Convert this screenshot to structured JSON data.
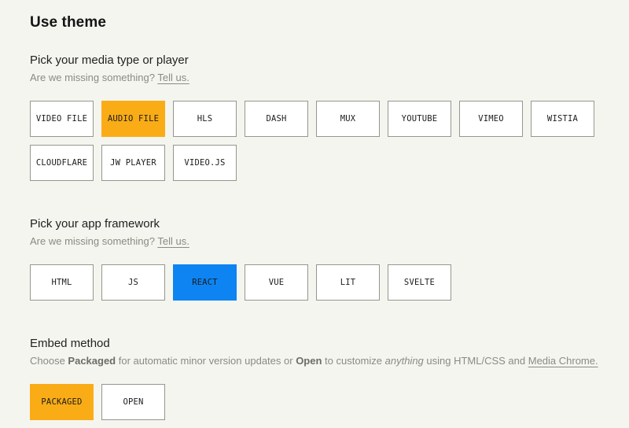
{
  "page": {
    "title": "Use theme",
    "background_color": "#f5f5f0"
  },
  "colors": {
    "selected_orange": "#faac16",
    "selected_blue": "#0d84f2",
    "button_border": "#96968e",
    "muted_text": "#8b8b84"
  },
  "sections": [
    {
      "id": "media-type",
      "heading": "Pick your media type or player",
      "subtext_parts": [
        {
          "text": "Are we missing something? ",
          "name": "missing-something-text"
        },
        {
          "text": "Tell us.",
          "link": true,
          "name": "tell-us-link"
        }
      ],
      "selected_color": "#faac16",
      "options": [
        {
          "label": "VIDEO FILE",
          "selected": false
        },
        {
          "label": "AUDIO FILE",
          "selected": true
        },
        {
          "label": "HLS",
          "selected": false
        },
        {
          "label": "DASH",
          "selected": false
        },
        {
          "label": "MUX",
          "selected": false
        },
        {
          "label": "YOUTUBE",
          "selected": false
        },
        {
          "label": "VIMEO",
          "selected": false
        },
        {
          "label": "WISTIA",
          "selected": false
        },
        {
          "label": "CLOUDFLARE",
          "selected": false
        },
        {
          "label": "JW PLAYER",
          "selected": false
        },
        {
          "label": "VIDEO.JS",
          "selected": false
        }
      ]
    },
    {
      "id": "framework",
      "heading": "Pick your app framework",
      "subtext_parts": [
        {
          "text": "Are we missing something? ",
          "name": "missing-something-text"
        },
        {
          "text": "Tell us.",
          "link": true,
          "name": "tell-us-link"
        }
      ],
      "selected_color": "#0d84f2",
      "options": [
        {
          "label": "HTML",
          "selected": false
        },
        {
          "label": "JS",
          "selected": false
        },
        {
          "label": "REACT",
          "selected": true
        },
        {
          "label": "VUE",
          "selected": false
        },
        {
          "label": "LIT",
          "selected": false
        },
        {
          "label": "SVELTE",
          "selected": false
        }
      ]
    },
    {
      "id": "embed-method",
      "heading": "Embed method",
      "subtext_parts": [
        {
          "text": "Choose ",
          "name": "embed-desc-text"
        },
        {
          "text": "Packaged",
          "bold": true,
          "name": "embed-desc-packaged"
        },
        {
          "text": " for automatic minor version updates or ",
          "name": "embed-desc-text"
        },
        {
          "text": "Open",
          "bold": true,
          "name": "embed-desc-open"
        },
        {
          "text": " to customize ",
          "name": "embed-desc-text"
        },
        {
          "text": "anything",
          "italic": true,
          "name": "embed-desc-anything"
        },
        {
          "text": " using HTML/CSS and ",
          "name": "embed-desc-text"
        },
        {
          "text": "Media Chrome.",
          "link": true,
          "name": "media-chrome-link"
        }
      ],
      "selected_color": "#faac16",
      "options": [
        {
          "label": "PACKAGED",
          "selected": true
        },
        {
          "label": "OPEN",
          "selected": false
        }
      ]
    }
  ]
}
